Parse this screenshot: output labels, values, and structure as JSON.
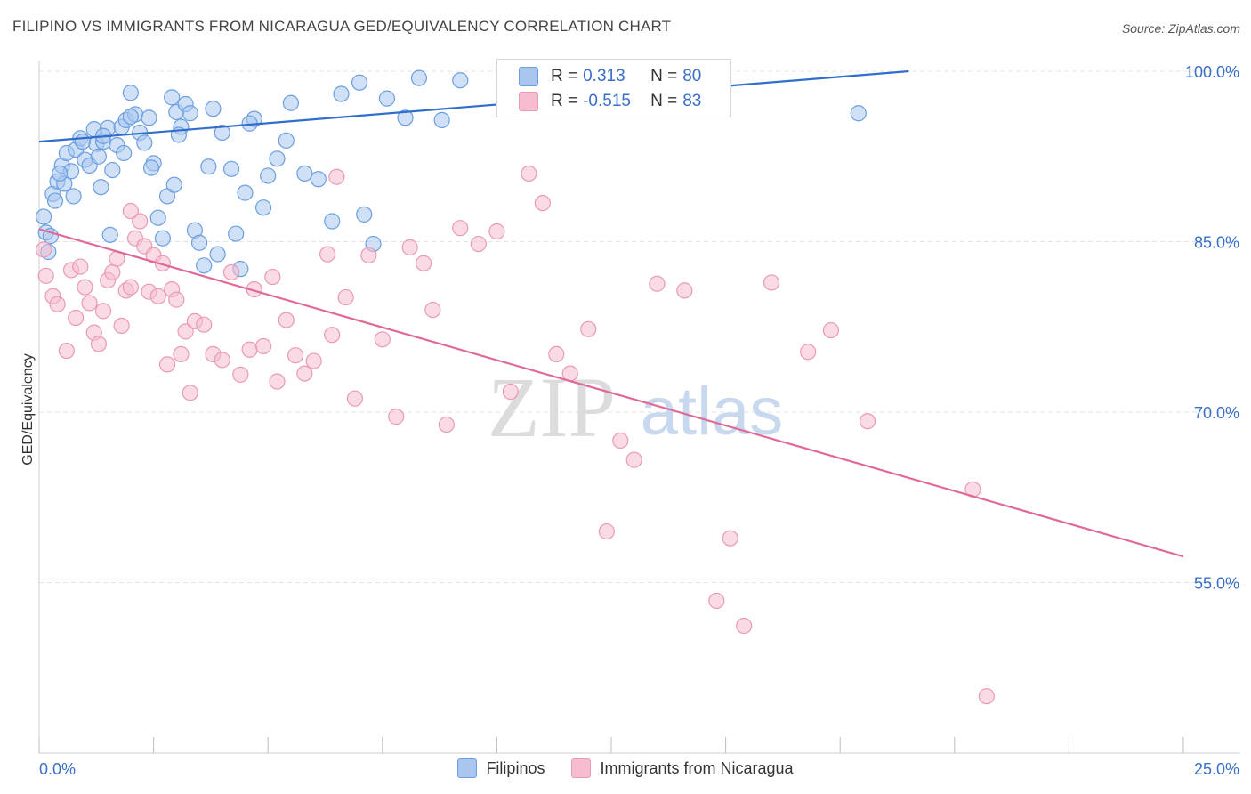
{
  "header": {
    "title": "FILIPINO VS IMMIGRANTS FROM NICARAGUA GED/EQUIVALENCY CORRELATION CHART",
    "source": "Source: ZipAtlas.com"
  },
  "watermark": {
    "zip": "ZIP",
    "atlas": "atlas"
  },
  "legend": {
    "rows": [
      {
        "r_label": "R =",
        "r_value": "0.313",
        "n_label": "N =",
        "n_value": "80"
      },
      {
        "r_label": "R =",
        "r_value": "-0.515",
        "n_label": "N =",
        "n_value": "83"
      }
    ]
  },
  "colors": {
    "blue_fill": "#a9c6ef",
    "blue_stroke": "#6b9fe0",
    "blue_line": "#2f6ecb",
    "pink_fill": "#f6bdd0",
    "pink_stroke": "#e99ab6",
    "pink_line": "#e06a97",
    "axis_text": "#3a6fc8",
    "grid": "#e3e3e3"
  },
  "chart_data": {
    "type": "scatter",
    "xlabel": "",
    "ylabel": "GED/Equivalency",
    "xlim": [
      0,
      25
    ],
    "ylim": [
      40,
      100
    ],
    "x_ticks": [
      "0.0%",
      "25.0%"
    ],
    "y_ticks": [
      {
        "value": 100,
        "label": "100.0%"
      },
      {
        "value": 85,
        "label": "85.0%"
      },
      {
        "value": 70,
        "label": "70.0%"
      },
      {
        "value": 55,
        "label": "55.0%"
      }
    ],
    "grid": "horizontal dashed",
    "series": [
      {
        "name": "Filipinos",
        "r": 0.313,
        "n": 80,
        "trend": [
          [
            0,
            93.8
          ],
          [
            19.0,
            100.0
          ]
        ],
        "points": [
          [
            0.1,
            87.2
          ],
          [
            0.15,
            85.8
          ],
          [
            0.2,
            84.1
          ],
          [
            0.3,
            89.2
          ],
          [
            0.35,
            88.6
          ],
          [
            0.4,
            90.3
          ],
          [
            0.5,
            91.7
          ],
          [
            0.55,
            90.1
          ],
          [
            0.6,
            92.8
          ],
          [
            0.7,
            91.2
          ],
          [
            0.75,
            89.0
          ],
          [
            0.8,
            93.1
          ],
          [
            0.9,
            94.1
          ],
          [
            1.0,
            92.2
          ],
          [
            1.1,
            91.7
          ],
          [
            1.2,
            94.9
          ],
          [
            1.25,
            93.6
          ],
          [
            1.3,
            92.5
          ],
          [
            1.35,
            89.8
          ],
          [
            1.4,
            93.8
          ],
          [
            1.5,
            95.0
          ],
          [
            1.6,
            91.3
          ],
          [
            1.7,
            93.5
          ],
          [
            1.8,
            95.1
          ],
          [
            1.9,
            95.7
          ],
          [
            2.0,
            98.1
          ],
          [
            2.1,
            96.2
          ],
          [
            2.2,
            94.6
          ],
          [
            2.3,
            93.7
          ],
          [
            2.4,
            95.9
          ],
          [
            2.5,
            91.9
          ],
          [
            2.6,
            87.1
          ],
          [
            2.7,
            85.3
          ],
          [
            2.8,
            89.0
          ],
          [
            2.9,
            97.7
          ],
          [
            3.0,
            96.4
          ],
          [
            3.1,
            95.1
          ],
          [
            3.2,
            97.1
          ],
          [
            3.3,
            96.3
          ],
          [
            3.4,
            86.0
          ],
          [
            3.5,
            84.9
          ],
          [
            3.6,
            82.9
          ],
          [
            3.7,
            91.6
          ],
          [
            3.8,
            96.7
          ],
          [
            4.0,
            94.6
          ],
          [
            4.2,
            91.4
          ],
          [
            4.3,
            85.7
          ],
          [
            4.5,
            89.3
          ],
          [
            4.7,
            95.8
          ],
          [
            4.9,
            88.0
          ],
          [
            5.0,
            90.8
          ],
          [
            5.2,
            92.3
          ],
          [
            5.5,
            97.2
          ],
          [
            5.8,
            91.0
          ],
          [
            6.1,
            90.5
          ],
          [
            6.4,
            86.8
          ],
          [
            6.6,
            98.0
          ],
          [
            7.0,
            99.0
          ],
          [
            7.3,
            84.8
          ],
          [
            7.6,
            97.6
          ],
          [
            8.0,
            95.9
          ],
          [
            8.3,
            99.4
          ],
          [
            8.8,
            95.7
          ],
          [
            9.2,
            99.2
          ],
          [
            2.0,
            96.0
          ],
          [
            1.4,
            94.3
          ],
          [
            0.95,
            93.8
          ],
          [
            0.45,
            91.0
          ],
          [
            3.05,
            94.4
          ],
          [
            4.6,
            95.4
          ],
          [
            0.25,
            85.5
          ],
          [
            1.55,
            85.6
          ],
          [
            2.45,
            91.5
          ],
          [
            5.4,
            93.9
          ],
          [
            3.9,
            83.9
          ],
          [
            1.85,
            92.8
          ],
          [
            2.95,
            90.0
          ],
          [
            4.4,
            82.6
          ],
          [
            17.9,
            96.3
          ],
          [
            7.1,
            87.4
          ]
        ]
      },
      {
        "name": "Immigrants from Nicaragua",
        "r": -0.515,
        "n": 83,
        "trend": [
          [
            0,
            86.1
          ],
          [
            25,
            57.3
          ]
        ],
        "points": [
          [
            0.1,
            84.3
          ],
          [
            0.15,
            82.0
          ],
          [
            0.3,
            80.2
          ],
          [
            0.4,
            79.5
          ],
          [
            0.6,
            75.4
          ],
          [
            0.7,
            82.5
          ],
          [
            0.8,
            78.3
          ],
          [
            0.9,
            82.8
          ],
          [
            1.0,
            81.0
          ],
          [
            1.1,
            79.6
          ],
          [
            1.2,
            77.0
          ],
          [
            1.3,
            76.0
          ],
          [
            1.4,
            78.9
          ],
          [
            1.5,
            81.6
          ],
          [
            1.6,
            82.3
          ],
          [
            1.7,
            83.5
          ],
          [
            1.8,
            77.6
          ],
          [
            1.9,
            80.7
          ],
          [
            2.0,
            81.0
          ],
          [
            2.1,
            85.3
          ],
          [
            2.2,
            86.8
          ],
          [
            2.3,
            84.6
          ],
          [
            2.4,
            80.6
          ],
          [
            2.5,
            83.8
          ],
          [
            2.6,
            80.2
          ],
          [
            2.7,
            83.1
          ],
          [
            2.8,
            74.2
          ],
          [
            2.9,
            80.8
          ],
          [
            3.0,
            79.9
          ],
          [
            3.1,
            75.1
          ],
          [
            3.2,
            77.1
          ],
          [
            3.3,
            71.7
          ],
          [
            3.4,
            78.0
          ],
          [
            3.6,
            77.7
          ],
          [
            3.8,
            75.1
          ],
          [
            4.0,
            74.6
          ],
          [
            4.2,
            82.3
          ],
          [
            4.4,
            73.3
          ],
          [
            4.6,
            75.5
          ],
          [
            4.7,
            80.8
          ],
          [
            4.9,
            75.8
          ],
          [
            5.1,
            81.9
          ],
          [
            5.2,
            72.7
          ],
          [
            5.4,
            78.1
          ],
          [
            5.6,
            75.0
          ],
          [
            5.8,
            73.4
          ],
          [
            6.0,
            74.5
          ],
          [
            6.3,
            83.9
          ],
          [
            6.5,
            90.7
          ],
          [
            6.7,
            80.1
          ],
          [
            6.9,
            71.2
          ],
          [
            7.2,
            83.8
          ],
          [
            7.5,
            76.4
          ],
          [
            7.8,
            69.6
          ],
          [
            8.1,
            84.5
          ],
          [
            8.4,
            83.1
          ],
          [
            8.6,
            79.0
          ],
          [
            8.9,
            68.9
          ],
          [
            9.2,
            86.2
          ],
          [
            9.6,
            84.8
          ],
          [
            10.0,
            85.9
          ],
          [
            10.3,
            71.8
          ],
          [
            10.7,
            91.0
          ],
          [
            11.0,
            88.4
          ],
          [
            11.3,
            75.1
          ],
          [
            11.6,
            73.4
          ],
          [
            12.0,
            77.3
          ],
          [
            12.4,
            59.5
          ],
          [
            12.7,
            67.5
          ],
          [
            13.0,
            65.8
          ],
          [
            13.5,
            81.3
          ],
          [
            14.1,
            80.7
          ],
          [
            14.8,
            53.4
          ],
          [
            15.1,
            58.9
          ],
          [
            15.4,
            51.2
          ],
          [
            16.0,
            81.4
          ],
          [
            16.8,
            75.3
          ],
          [
            17.3,
            77.2
          ],
          [
            18.1,
            69.2
          ],
          [
            20.4,
            63.2
          ],
          [
            6.4,
            76.8
          ],
          [
            2.0,
            87.7
          ],
          [
            20.7,
            45.0
          ]
        ]
      }
    ]
  }
}
